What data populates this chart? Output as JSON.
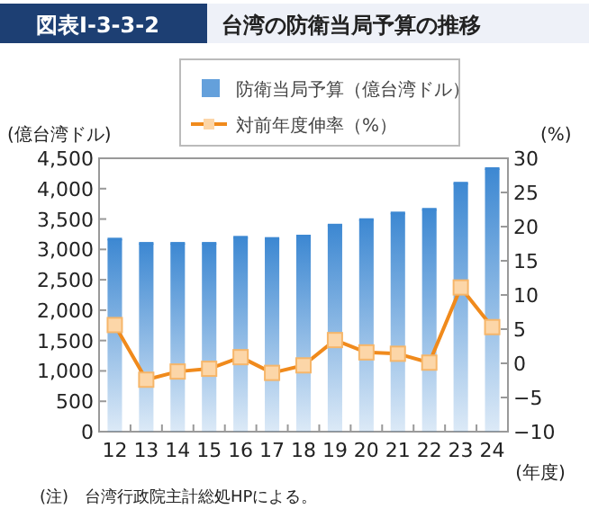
{
  "chart_data": {
    "type": "bar",
    "title": "台湾の防衛当局予算の推移",
    "categories": [
      "12",
      "13",
      "14",
      "15",
      "16",
      "17",
      "18",
      "19",
      "20",
      "21",
      "22",
      "23",
      "24"
    ],
    "series": [
      {
        "name": "防衛当局予算（億台湾ドル）",
        "color": "#3d88d2",
        "values": [
          3170,
          3100,
          3100,
          3100,
          3200,
          3180,
          3220,
          3400,
          3490,
          3600,
          3660,
          4090,
          4330
        ]
      },
      {
        "name": "対前年度伸率（%）",
        "type": "line",
        "axis": "y2",
        "color": "#f08a1c",
        "marker": "square",
        "values": [
          5.6,
          -2.4,
          -1.2,
          -0.8,
          0.9,
          -1.4,
          -0.3,
          3.4,
          1.6,
          1.4,
          0.1,
          11.1,
          5.3
        ]
      }
    ],
    "ylim": [
      0,
      4500
    ],
    "yticks": [
      {
        "value": 0,
        "label": "0"
      },
      {
        "value": 500,
        "label": "500"
      },
      {
        "value": 1000,
        "label": "1,000"
      },
      {
        "value": 1500,
        "label": "1,500"
      },
      {
        "value": 2000,
        "label": "2,000"
      },
      {
        "value": 2500,
        "label": "2,500"
      },
      {
        "value": 3000,
        "label": "3,000"
      },
      {
        "value": 3500,
        "label": "3,500"
      },
      {
        "value": 4000,
        "label": "4,000"
      },
      {
        "value": 4500,
        "label": "4,500"
      }
    ],
    "y2lim": [
      -10,
      30
    ],
    "y2ticks": [
      {
        "value": -10,
        "label": "−10"
      },
      {
        "value": -5,
        "label": "−5"
      },
      0,
      5,
      10,
      15,
      20,
      25,
      30
    ],
    "ylabel": "(億台湾ドル)",
    "y2label": "(%)",
    "xlabel": "(年度)",
    "legend": "top",
    "annotations": [
      "図表Ⅰ-3-3-2",
      "(注)　台湾行政院主計総処HPによる。"
    ]
  }
}
